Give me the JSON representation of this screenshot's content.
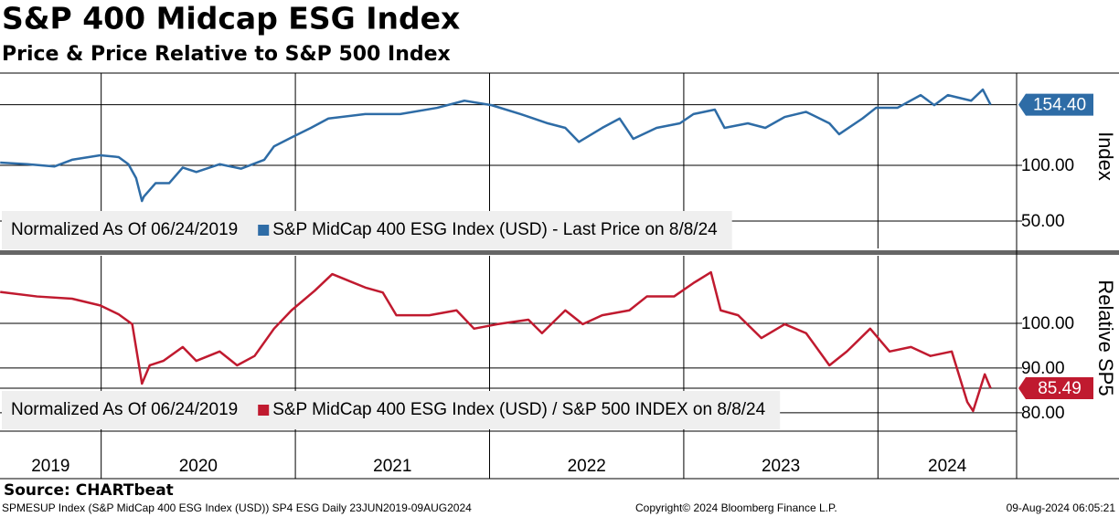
{
  "header": {
    "title": "S&P 400 Midcap ESG Index",
    "subtitle": "Price & Price Relative to S&P 500 Index"
  },
  "chart_data": [
    {
      "type": "line",
      "y_axis_title": "Index",
      "legend_note": "Normalized As Of 06/24/2019",
      "xlim": [
        2019.479,
        2024.714
      ],
      "xticks": [
        2020,
        2021,
        2022,
        2023,
        2024
      ],
      "ylim": [
        25.4,
        182.8
      ],
      "yticks": [
        {
          "value": 50,
          "label": "50.00"
        },
        {
          "value": 100,
          "label": "100.00"
        }
      ],
      "grid": true,
      "last_label": {
        "value": 154.4,
        "label": "154.40"
      },
      "x": [
        2019.48,
        2019.62,
        2019.76,
        2019.85,
        2019.995,
        2020.09,
        2020.14,
        2020.18,
        2020.21,
        2020.22,
        2020.28,
        2020.35,
        2020.42,
        2020.49,
        2020.61,
        2020.72,
        2020.84,
        2020.89,
        2020.98,
        2021.08,
        2021.17,
        2021.36,
        2021.54,
        2021.73,
        2021.87,
        2022.01,
        2022.16,
        2022.3,
        2022.39,
        2022.46,
        2022.58,
        2022.67,
        2022.74,
        2022.86,
        2022.98,
        2023.05,
        2023.16,
        2023.21,
        2023.33,
        2023.42,
        2023.52,
        2023.63,
        2023.75,
        2023.8,
        2023.92,
        2023.99,
        2024.1,
        2024.22,
        2024.29,
        2024.36,
        2024.48,
        2024.54,
        2024.58
      ],
      "series": [
        {
          "name": "S&P MidCap 400 ESG Index (USD) - Last Price on 8/8/24",
          "color": "#2e6ca6",
          "values": [
            102.5,
            101,
            99,
            105,
            109,
            107.4,
            101,
            88.5,
            68,
            72,
            84,
            84,
            98,
            94,
            101,
            97,
            105,
            117,
            125,
            133.6,
            142,
            146,
            146,
            151.6,
            158,
            154,
            146,
            137.7,
            133.6,
            121,
            133.6,
            142,
            123.8,
            133.6,
            137.7,
            146,
            150,
            133.6,
            137.7,
            133.6,
            143.4,
            148,
            137.7,
            127.9,
            142,
            151.6,
            151.6,
            163,
            154,
            163,
            158,
            168,
            154.4
          ]
        }
      ]
    },
    {
      "type": "line",
      "y_axis_title": "Relative SP5",
      "legend_note": "Normalized As Of 06/24/2019",
      "xlim": [
        2019.479,
        2024.714
      ],
      "xticks": [
        2020,
        2021,
        2022,
        2023,
        2024
      ],
      "year_labels": [
        "2019",
        "2020",
        "2021",
        "2022",
        "2023",
        "2024"
      ],
      "ylim": [
        76.3,
        115.1
      ],
      "yticks": [
        {
          "value": 80,
          "label": "80.00"
        },
        {
          "value": 90,
          "label": "90.00"
        },
        {
          "value": 100,
          "label": "100.00"
        }
      ],
      "grid": true,
      "last_label": {
        "value": 85.49,
        "label": "85.49"
      },
      "x": [
        2019.48,
        2019.67,
        2019.85,
        2019.995,
        2020.09,
        2020.16,
        2020.21,
        2020.25,
        2020.32,
        2020.42,
        2020.49,
        2020.61,
        2020.7,
        2020.79,
        2020.89,
        2020.98,
        2021.1,
        2021.19,
        2021.36,
        2021.45,
        2021.52,
        2021.69,
        2021.83,
        2021.92,
        2022.04,
        2022.2,
        2022.27,
        2022.39,
        2022.48,
        2022.58,
        2022.72,
        2022.81,
        2022.95,
        2023.05,
        2023.14,
        2023.19,
        2023.28,
        2023.4,
        2023.52,
        2023.63,
        2023.75,
        2023.84,
        2023.96,
        2024.06,
        2024.17,
        2024.27,
        2024.38,
        2024.46,
        2024.49,
        2024.55,
        2024.58
      ],
      "series": [
        {
          "name": "S&P MidCap 400 ESG Index (USD) / S&P 500 INDEX on 8/8/24",
          "color": "#c01a2f",
          "values": [
            107,
            106,
            105.5,
            104,
            102,
            99.8,
            86.5,
            90.6,
            91.6,
            94.7,
            91.6,
            93.7,
            90.6,
            92.7,
            98.8,
            102.9,
            107.3,
            111,
            108,
            106.9,
            101.8,
            101.8,
            102.9,
            98.8,
            99.8,
            100.8,
            97.8,
            102.9,
            99.8,
            101.8,
            102.9,
            106,
            106,
            109,
            111.4,
            102.9,
            101.8,
            96.7,
            99.8,
            97.8,
            90.6,
            93.7,
            98.8,
            93.7,
            94.7,
            92.7,
            93.7,
            82.4,
            80.4,
            88.6,
            85.49
          ]
        }
      ]
    }
  ],
  "footer": {
    "source": "Source: CHARTbeat",
    "description": "SPMESUP Index (S&P MidCap 400 ESG Index (USD)) SP4 ESG  Daily 23JUN2019-09AUG2024",
    "copyright": "Copyright© 2024 Bloomberg Finance L.P.",
    "timestamp": "09-Aug-2024 06:05:21"
  }
}
